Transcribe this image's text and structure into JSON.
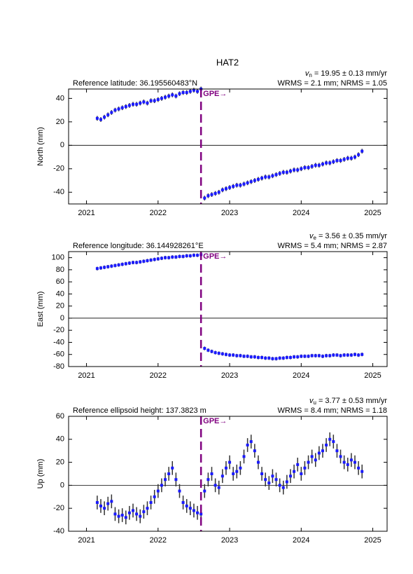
{
  "chart_data": [
    {
      "type": "scatter",
      "title": "HAT2",
      "ylabel": "North (mm)",
      "reference": "Reference latitude: 36.195560483°N",
      "velocity": {
        "symbol": "v",
        "subscript": "n",
        "text": " = 19.95 ± 0.13 mm/yr"
      },
      "stats": "WRMS = 2.1 mm; NRMS = 1.05",
      "xlim": [
        2020.75,
        2025.2
      ],
      "xticks": [
        2021,
        2022,
        2023,
        2024,
        2025
      ],
      "ylim": [
        -50,
        48
      ],
      "yticks": [
        -40,
        -20,
        0,
        20,
        40
      ],
      "hline": 0,
      "annotation": {
        "text": "GPE→",
        "x": 2022.6,
        "color": "#800080"
      },
      "color": "#1a1aff",
      "error_color": "#333333",
      "series": [
        {
          "error": 2,
          "x": [
            2021.15,
            2021.2,
            2021.25,
            2021.3,
            2021.35,
            2021.4,
            2021.45,
            2021.5,
            2021.55,
            2021.6,
            2021.65,
            2021.7,
            2021.75,
            2021.8,
            2021.85,
            2021.9,
            2021.95,
            2022.0,
            2022.05,
            2022.1,
            2022.15,
            2022.2,
            2022.25,
            2022.3,
            2022.35,
            2022.4,
            2022.45,
            2022.5,
            2022.55,
            2022.6
          ],
          "values": [
            23,
            22,
            24,
            26,
            28,
            30,
            31,
            32,
            33,
            34,
            35,
            35,
            36,
            37,
            36,
            38,
            38,
            39,
            40,
            41,
            42,
            43,
            42,
            44,
            45,
            45,
            46,
            47,
            46,
            48
          ]
        },
        {
          "error": 2,
          "x": [
            2022.65,
            2022.7,
            2022.75,
            2022.8,
            2022.85,
            2022.9,
            2022.95,
            2023.0,
            2023.05,
            2023.1,
            2023.15,
            2023.2,
            2023.25,
            2023.3,
            2023.35,
            2023.4,
            2023.45,
            2023.5,
            2023.55,
            2023.6,
            2023.65,
            2023.7,
            2023.75,
            2023.8,
            2023.85,
            2023.9,
            2023.95,
            2024.0,
            2024.05,
            2024.1,
            2024.15,
            2024.2,
            2024.25,
            2024.3,
            2024.35,
            2024.4,
            2024.45,
            2024.5,
            2024.55,
            2024.6,
            2024.65,
            2024.7,
            2024.75,
            2024.8,
            2024.85
          ],
          "values": [
            -45,
            -43,
            -42,
            -41,
            -40,
            -38,
            -37,
            -36,
            -35,
            -34,
            -34,
            -33,
            -32,
            -31,
            -30,
            -29,
            -28,
            -27,
            -27,
            -26,
            -25,
            -24,
            -23,
            -23,
            -22,
            -21,
            -21,
            -20,
            -19,
            -19,
            -18,
            -17,
            -17,
            -16,
            -15,
            -15,
            -14,
            -13,
            -13,
            -12,
            -11,
            -11,
            -10,
            -8,
            -5
          ]
        }
      ]
    },
    {
      "type": "scatter",
      "ylabel": "East (mm)",
      "reference": "Reference longitude: 36.144928261°E",
      "velocity": {
        "symbol": "v",
        "subscript": "e",
        "text": " = 3.56 ± 0.35 mm/yr"
      },
      "stats": "WRMS = 5.4 mm; NRMS = 2.87",
      "xlim": [
        2020.75,
        2025.2
      ],
      "xticks": [
        2021,
        2022,
        2023,
        2024,
        2025
      ],
      "ylim": [
        -80,
        110
      ],
      "yticks": [
        -80,
        -60,
        -40,
        -20,
        0,
        20,
        40,
        60,
        80,
        100
      ],
      "hline": 0,
      "annotation": {
        "text": "GPE→",
        "x": 2022.6,
        "color": "#800080"
      },
      "color": "#1a1aff",
      "error_color": "#333333",
      "series": [
        {
          "error": 3,
          "x": [
            2021.15,
            2021.2,
            2021.25,
            2021.3,
            2021.35,
            2021.4,
            2021.45,
            2021.5,
            2021.55,
            2021.6,
            2021.65,
            2021.7,
            2021.75,
            2021.8,
            2021.85,
            2021.9,
            2021.95,
            2022.0,
            2022.05,
            2022.1,
            2022.15,
            2022.2,
            2022.25,
            2022.3,
            2022.35,
            2022.4,
            2022.45,
            2022.5,
            2022.55,
            2022.6
          ],
          "values": [
            82,
            83,
            84,
            85,
            86,
            87,
            88,
            89,
            90,
            91,
            92,
            92,
            93,
            94,
            95,
            96,
            97,
            98,
            99,
            100,
            100,
            101,
            101,
            102,
            102,
            103,
            103,
            104,
            104,
            105
          ]
        },
        {
          "error": 3,
          "x": [
            2022.65,
            2022.7,
            2022.75,
            2022.8,
            2022.85,
            2022.9,
            2022.95,
            2023.0,
            2023.05,
            2023.1,
            2023.15,
            2023.2,
            2023.25,
            2023.3,
            2023.35,
            2023.4,
            2023.45,
            2023.5,
            2023.55,
            2023.6,
            2023.65,
            2023.7,
            2023.75,
            2023.8,
            2023.85,
            2023.9,
            2023.95,
            2024.0,
            2024.05,
            2024.1,
            2024.15,
            2024.2,
            2024.25,
            2024.3,
            2024.35,
            2024.4,
            2024.45,
            2024.5,
            2024.55,
            2024.6,
            2024.65,
            2024.7,
            2024.75,
            2024.8,
            2024.85
          ],
          "values": [
            -50,
            -53,
            -55,
            -57,
            -58,
            -59,
            -60,
            -61,
            -61,
            -62,
            -62,
            -63,
            -63,
            -64,
            -64,
            -65,
            -65,
            -66,
            -66,
            -67,
            -67,
            -66,
            -66,
            -65,
            -65,
            -64,
            -64,
            -63,
            -63,
            -63,
            -62,
            -62,
            -62,
            -63,
            -62,
            -62,
            -61,
            -61,
            -62,
            -61,
            -61,
            -61,
            -60,
            -61,
            -60
          ]
        }
      ]
    },
    {
      "type": "scatter",
      "ylabel": "Up (mm)",
      "reference": "Reference ellipsoid height: 137.3823 m",
      "velocity": {
        "symbol": "v",
        "subscript": "u",
        "text": " = 3.77 ± 0.53 mm/yr"
      },
      "stats": "WRMS = 8.4 mm; NRMS = 1.18",
      "xlim": [
        2020.75,
        2025.2
      ],
      "xticks": [
        2021,
        2022,
        2023,
        2024,
        2025
      ],
      "ylim": [
        -40,
        60
      ],
      "yticks": [
        -40,
        -20,
        0,
        20,
        40,
        60
      ],
      "hline": 0,
      "annotation": {
        "text": "GPE→",
        "x": 2022.6,
        "color": "#800080"
      },
      "color": "#1a1aff",
      "error_color": "#333333",
      "series": [
        {
          "error": 6,
          "x": [
            2021.15,
            2021.2,
            2021.25,
            2021.3,
            2021.35,
            2021.4,
            2021.45,
            2021.5,
            2021.55,
            2021.6,
            2021.65,
            2021.7,
            2021.75,
            2021.8,
            2021.85,
            2021.9,
            2021.95,
            2022.0,
            2022.05,
            2022.1,
            2022.15,
            2022.2,
            2022.25,
            2022.3,
            2022.35,
            2022.4,
            2022.45,
            2022.5,
            2022.55,
            2022.6
          ],
          "values": [
            -15,
            -18,
            -20,
            -16,
            -14,
            -25,
            -27,
            -26,
            -28,
            -24,
            -22,
            -25,
            -27,
            -23,
            -20,
            -15,
            -10,
            -5,
            0,
            5,
            10,
            15,
            5,
            -5,
            -15,
            -18,
            -20,
            -22,
            -24,
            -25
          ]
        },
        {
          "error": 6,
          "x": [
            2022.65,
            2022.7,
            2022.75,
            2022.8,
            2022.85,
            2022.9,
            2022.95,
            2023.0,
            2023.05,
            2023.1,
            2023.15,
            2023.2,
            2023.25,
            2023.3,
            2023.35,
            2023.4,
            2023.45,
            2023.5,
            2023.55,
            2023.6,
            2023.65,
            2023.7,
            2023.75,
            2023.8,
            2023.85,
            2023.9,
            2023.95,
            2024.0,
            2024.05,
            2024.1,
            2024.15,
            2024.2,
            2024.25,
            2024.3,
            2024.35,
            2024.4,
            2024.45,
            2024.5,
            2024.55,
            2024.6,
            2024.65,
            2024.7,
            2024.75,
            2024.8,
            2024.85
          ],
          "values": [
            -5,
            5,
            10,
            0,
            -2,
            8,
            15,
            20,
            10,
            12,
            15,
            25,
            35,
            38,
            30,
            20,
            10,
            5,
            2,
            8,
            5,
            0,
            -2,
            3,
            8,
            12,
            18,
            10,
            15,
            20,
            25,
            22,
            28,
            30,
            35,
            40,
            38,
            30,
            25,
            20,
            18,
            22,
            20,
            15,
            12
          ]
        }
      ]
    }
  ]
}
